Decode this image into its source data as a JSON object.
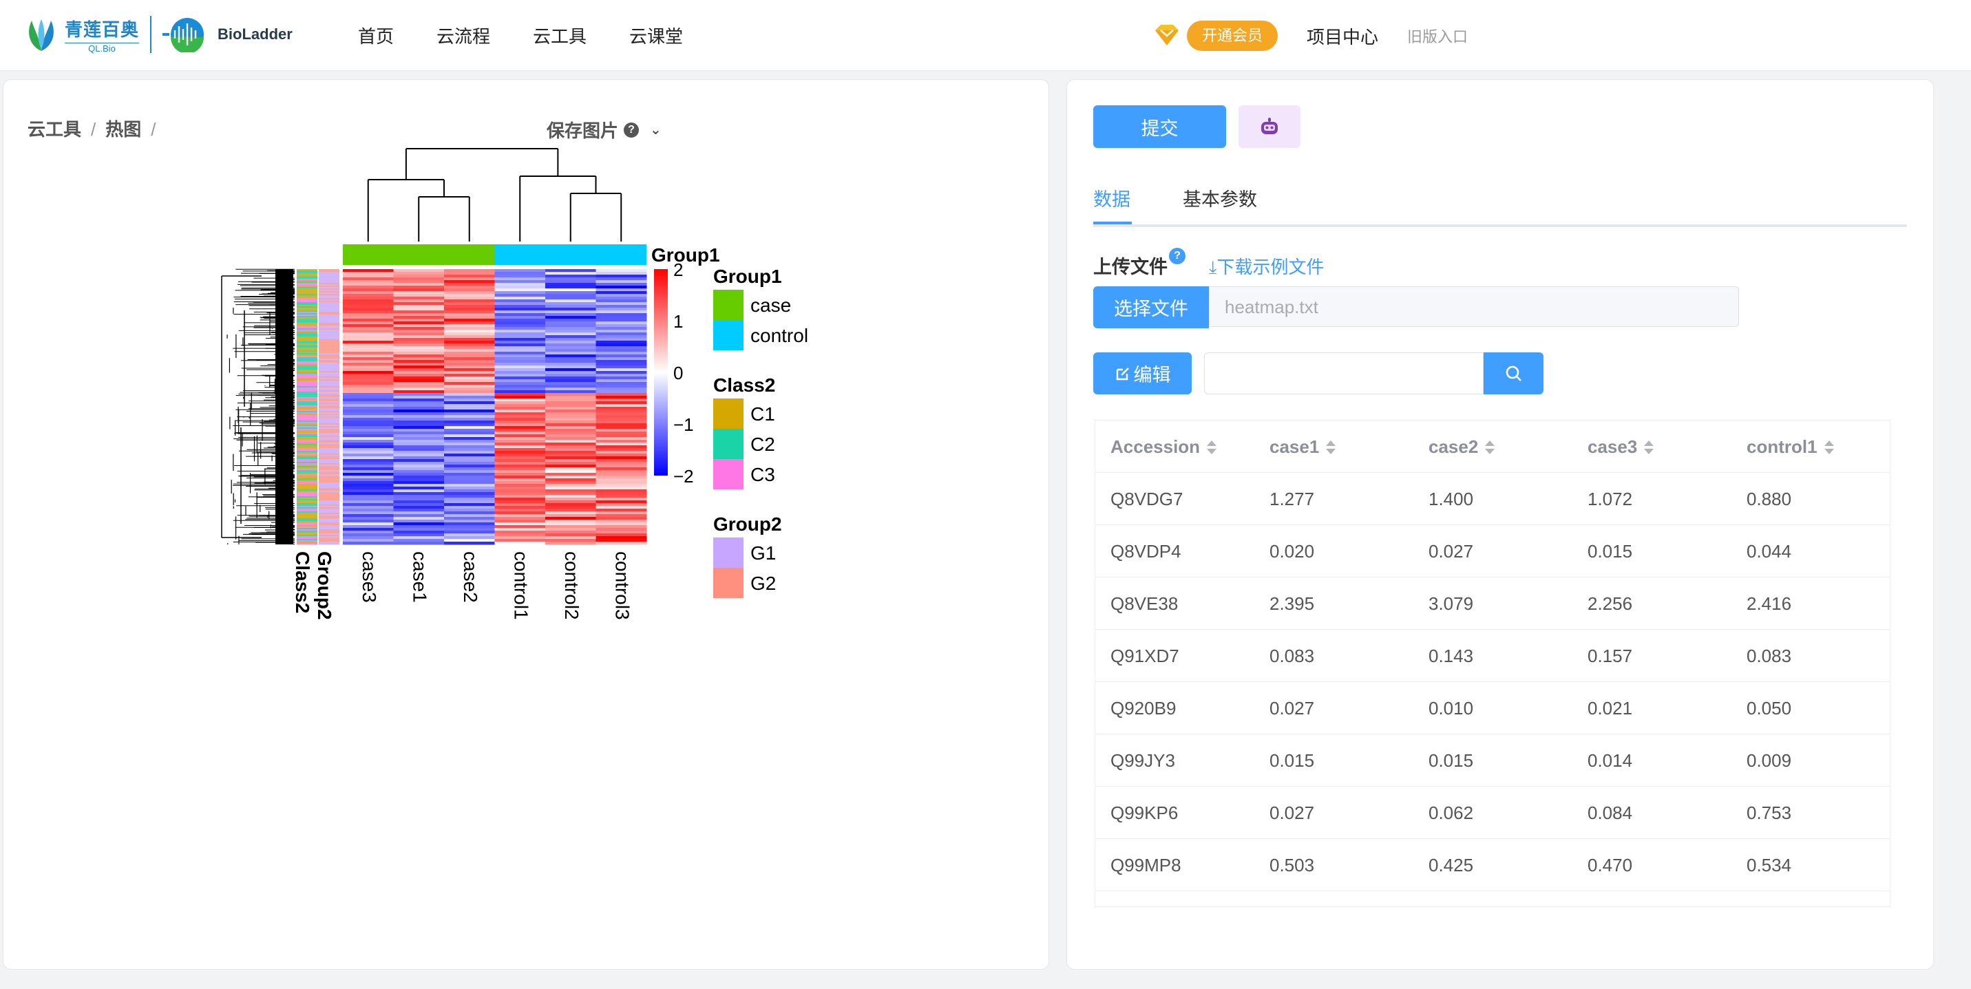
{
  "header": {
    "logo_ql_cn": "青莲百奥",
    "logo_ql_en": "QL.Bio",
    "logo_bioladder": "BioLadder",
    "nav": [
      "首页",
      "云流程",
      "云工具",
      "云课堂"
    ],
    "vip_label": "开通会员",
    "project_center": "项目中心",
    "old_entry": "旧版入口",
    "vip_icon": "diamond-icon"
  },
  "breadcrumb": {
    "items": [
      "云工具",
      "热图"
    ],
    "separator": "/"
  },
  "save_image": {
    "label": "保存图片",
    "help": "?"
  },
  "heatmap": {
    "top_annotation_title": "Group1",
    "columns": [
      "case3",
      "case1",
      "case2",
      "control1",
      "control2",
      "control3"
    ],
    "row_annotation_labels": [
      "Class2",
      "Group2"
    ],
    "colorbar_ticks": [
      "2",
      "1",
      "0",
      "−1",
      "−2"
    ],
    "legends": [
      {
        "title": "Group1",
        "items": [
          {
            "label": "case",
            "color": "#66cc00"
          },
          {
            "label": "control",
            "color": "#00ccff"
          }
        ]
      },
      {
        "title": "Class2",
        "items": [
          {
            "label": "C1",
            "color": "#d4a800"
          },
          {
            "label": "C2",
            "color": "#1ad3a7"
          },
          {
            "label": "C3",
            "color": "#ff77e4"
          }
        ]
      },
      {
        "title": "Group2",
        "items": [
          {
            "label": "G1",
            "color": "#c7a6ff"
          },
          {
            "label": "G2",
            "color": "#ff9080"
          }
        ]
      }
    ],
    "colors": {
      "high": "#ff0000",
      "mid": "#ffffff",
      "low": "#0000ff"
    }
  },
  "panel": {
    "submit": "提交",
    "bot_icon": "robot-icon",
    "tabs": [
      "数据",
      "基本参数"
    ],
    "upload_label": "上传文件",
    "upload_help": "?",
    "download_example": "下载示例文件",
    "choose_file": "选择文件",
    "file_name": "heatmap.txt",
    "edit": "编辑",
    "search_value": ""
  },
  "table": {
    "columns": [
      "Accession",
      "case1",
      "case2",
      "case3",
      "control1"
    ],
    "rows": [
      [
        "Q8VDG7",
        "1.277",
        "1.400",
        "1.072",
        "0.880"
      ],
      [
        "Q8VDP4",
        "0.020",
        "0.027",
        "0.015",
        "0.044"
      ],
      [
        "Q8VE38",
        "2.395",
        "3.079",
        "2.256",
        "2.416"
      ],
      [
        "Q91XD7",
        "0.083",
        "0.143",
        "0.157",
        "0.083"
      ],
      [
        "Q920B9",
        "0.027",
        "0.010",
        "0.021",
        "0.050"
      ],
      [
        "Q99JY3",
        "0.015",
        "0.015",
        "0.014",
        "0.009"
      ],
      [
        "Q99KP6",
        "0.027",
        "0.062",
        "0.084",
        "0.753"
      ],
      [
        "Q99MP8",
        "0.503",
        "0.425",
        "0.470",
        "0.534"
      ]
    ]
  }
}
